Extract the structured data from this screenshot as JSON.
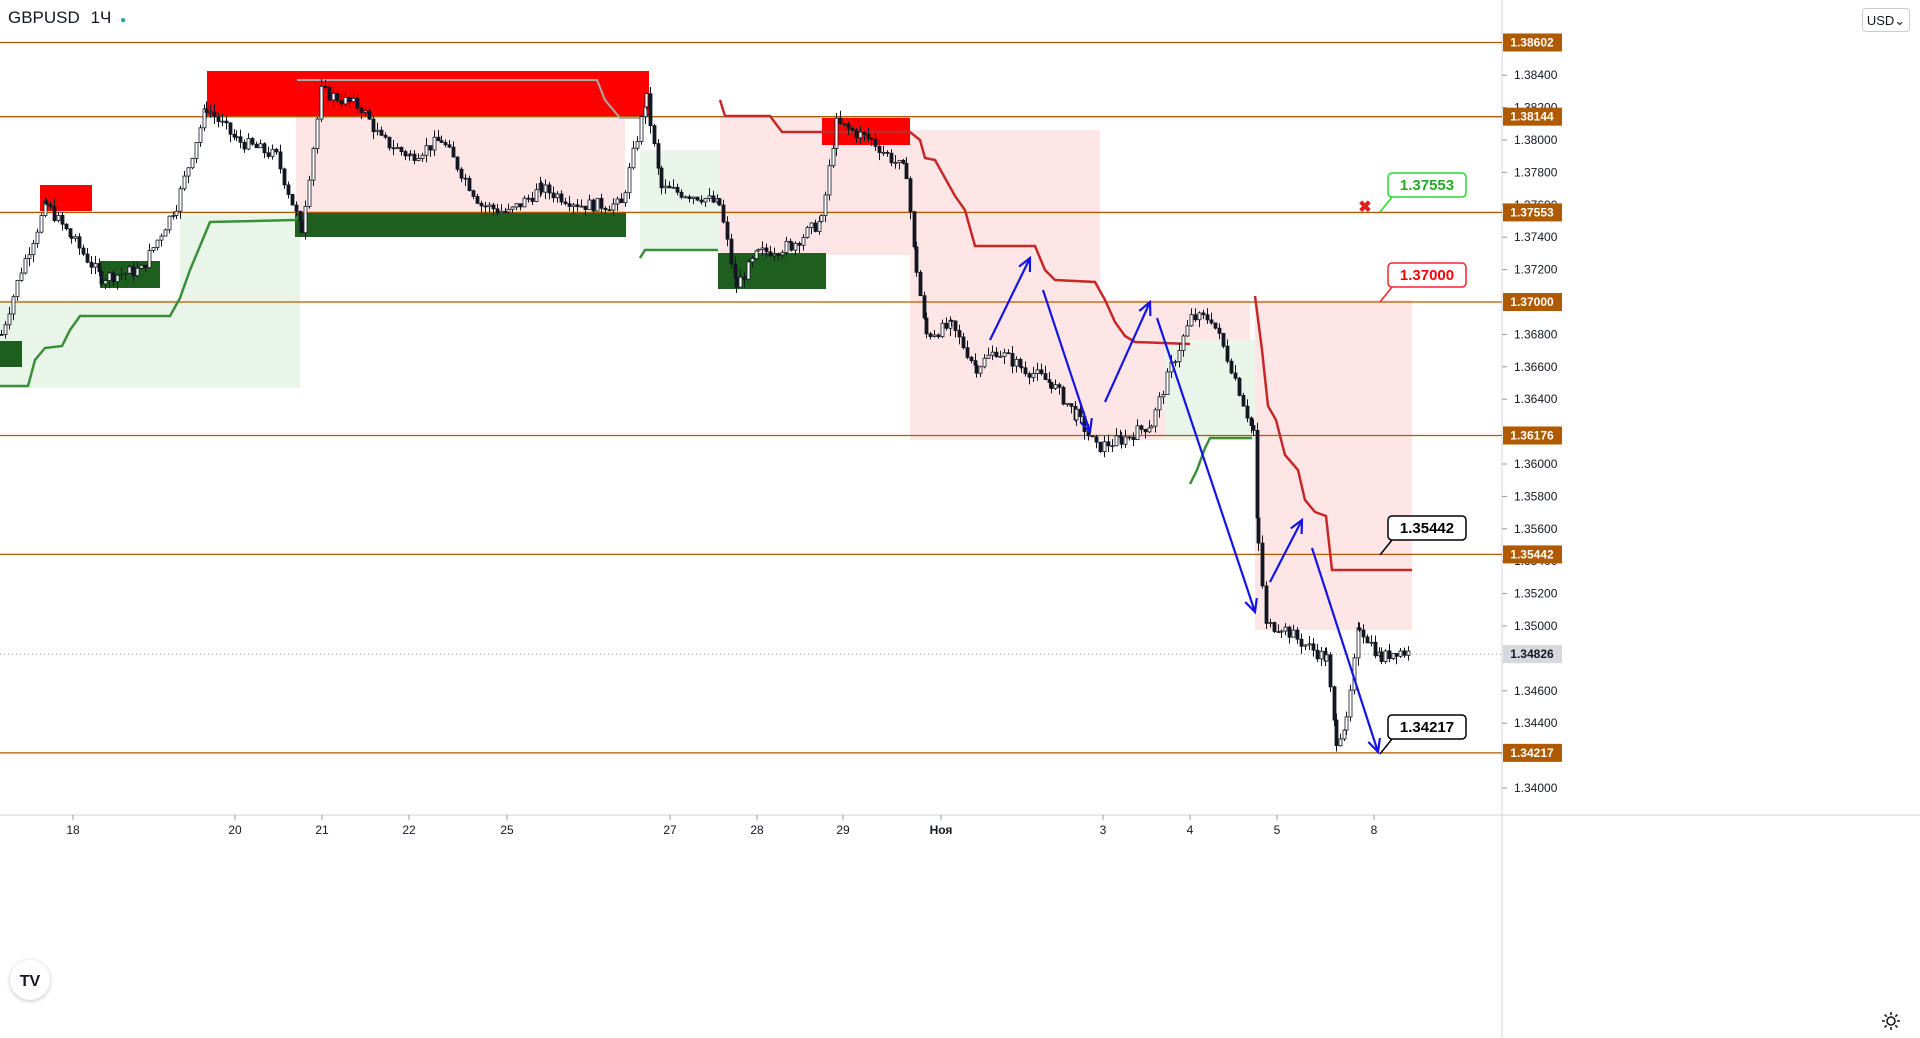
{
  "symbol": "GBPUSD",
  "timeframe": "1Ч",
  "currency": "USD",
  "colors": {
    "level": "#b05a00",
    "bull": "#1e5e1e",
    "bear": "#ff0000",
    "trendUp": "#3a8f3a",
    "trendDown": "#c62828",
    "arrow": "#1414e6",
    "callout_green": "#22dd22",
    "callout_red": "#ff2222"
  },
  "price_ticks": [
    "1.38400",
    "1.38200",
    "1.38000",
    "1.37800",
    "1.37600",
    "1.37400",
    "1.37200",
    "1.36800",
    "1.36600",
    "1.36400",
    "1.36000",
    "1.35800",
    "1.35600",
    "1.35400",
    "1.35200",
    "1.35000",
    "1.34600",
    "1.34400",
    "1.34000"
  ],
  "level_labels": [
    "1.38602",
    "1.38144",
    "1.37553",
    "1.37000",
    "1.36176",
    "1.35442",
    "1.34217"
  ],
  "current_price": "1.34826",
  "time_labels": [
    "18",
    "20",
    "21",
    "22",
    "25",
    "27",
    "28",
    "29",
    "Ноя",
    "3",
    "4",
    "5",
    "8"
  ],
  "callouts": [
    "1.37553",
    "1.37000",
    "1.35442",
    "1.34217"
  ],
  "chart_data": {
    "type": "candlestick",
    "symbol": "GBPUSD",
    "timeframe": "1Ч",
    "ylim": [
      1.339,
      1.387
    ],
    "horizontal_levels": [
      1.38602,
      1.38144,
      1.37553,
      1.37,
      1.36176,
      1.35442,
      1.34217
    ],
    "last_price": 1.34826,
    "approx_close_path": [
      {
        "x": "18",
        "y": 1.375
      },
      {
        "x": "20",
        "y": 1.38
      },
      {
        "x": "21",
        "y": 1.3825
      },
      {
        "x": "22",
        "y": 1.38
      },
      {
        "x": "25",
        "y": 1.376
      },
      {
        "x": "27",
        "y": 1.3765
      },
      {
        "x": "28",
        "y": 1.372
      },
      {
        "x": "29",
        "y": 1.38
      },
      {
        "x": "Ноя",
        "y": 1.368
      },
      {
        "x": "3",
        "y": 1.362
      },
      {
        "x": "4",
        "y": 1.369
      },
      {
        "x": "5",
        "y": 1.351
      },
      {
        "x": "8",
        "y": 1.348
      }
    ]
  }
}
